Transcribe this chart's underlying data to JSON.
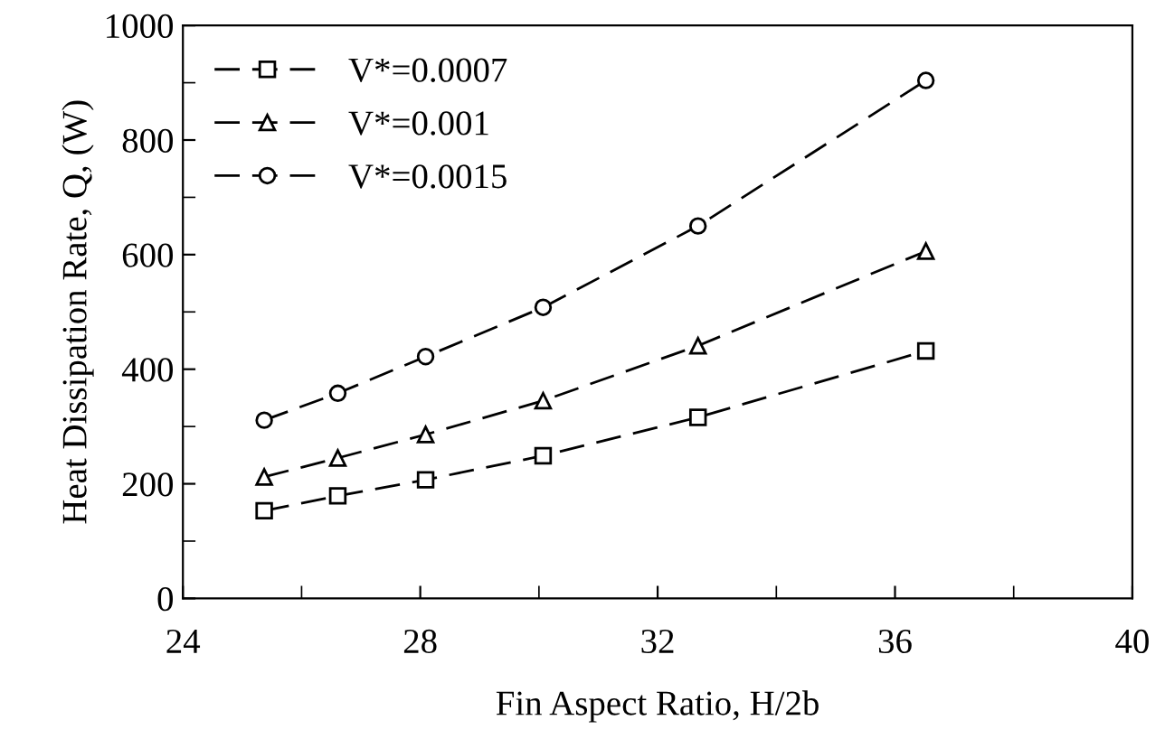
{
  "chart_data": {
    "type": "line",
    "xlabel": "Fin Aspect Ratio, H/2b",
    "ylabel": "Heat Dissipation Rate, Q, (W)",
    "xlim": [
      24,
      40
    ],
    "xticks": [
      24,
      28,
      32,
      36,
      40
    ],
    "ylim": [
      0,
      1000
    ],
    "yticks": [
      0,
      200,
      400,
      600,
      800,
      1000
    ],
    "line_style": "dashed",
    "legend": "top left",
    "grid": false,
    "series": [
      {
        "name": "V*=0.0007",
        "color": "#000000",
        "marker": "square",
        "x": [
          25.37,
          26.61,
          28.09,
          30.07,
          32.68,
          36.52
        ],
        "values": [
          153,
          179,
          207,
          249,
          316,
          432
        ]
      },
      {
        "name": "V*=0.001",
        "color": "#000000",
        "marker": "triangle",
        "x": [
          25.37,
          26.61,
          28.09,
          30.07,
          32.68,
          36.52
        ],
        "values": [
          212,
          245,
          286,
          345,
          441,
          606
        ]
      },
      {
        "name": "V*=0.0015",
        "color": "#000000",
        "marker": "circle",
        "x": [
          25.37,
          26.61,
          28.09,
          30.07,
          32.68,
          36.52
        ],
        "values": [
          311,
          358,
          422,
          508,
          650,
          904
        ]
      }
    ]
  }
}
